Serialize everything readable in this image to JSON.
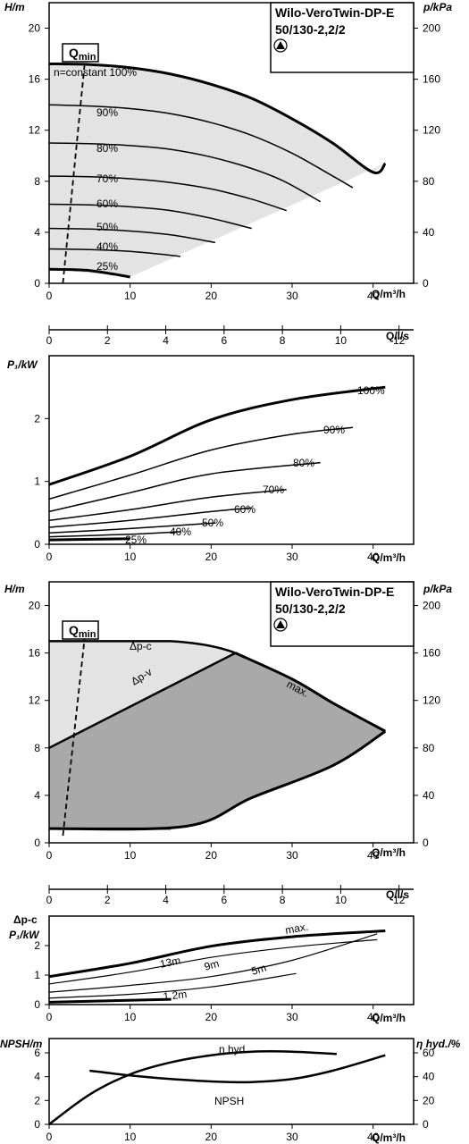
{
  "pump_title": {
    "line1": "Wilo-VeroTwin-DP-E",
    "line2": "50/130-2,2/2"
  },
  "qmin": {
    "q": "Q",
    "sub": "min"
  },
  "axes": {
    "h": "H/m",
    "p": "p/kPa",
    "q_m3h": "Q/m³/h",
    "q_ls": "Q/l/s",
    "p1": "P₁/kW",
    "npsh": "NPSH/m",
    "eta": "η hyd./%",
    "dpc": "Δp-c"
  },
  "colors": {
    "envelope_light": "#e3e3e3",
    "envelope_dark": "#a9a9a9",
    "line": "#000000"
  },
  "chart_data": [
    {
      "id": "hq-constant",
      "type": "line",
      "xlabel": "Q/m³/h",
      "ylabel": "H/m",
      "y2label": "p/kPa",
      "xlim": [
        0,
        45
      ],
      "ylim": [
        0,
        22
      ],
      "y2lim": [
        0,
        220
      ],
      "xticks": [
        0,
        10,
        20,
        30,
        40
      ],
      "yticks": [
        0,
        4,
        8,
        12,
        16,
        20
      ],
      "y2ticks": [
        0,
        40,
        80,
        120,
        160,
        200
      ],
      "secondary_x": {
        "label": "Q/l/s",
        "ticks": [
          0,
          2,
          4,
          6,
          8,
          10,
          12
        ]
      },
      "series": [
        {
          "name": "n=constant 100%",
          "bold": true,
          "x": [
            0,
            5,
            10,
            15,
            20,
            25,
            30,
            35,
            40,
            41.5
          ],
          "y": [
            17.2,
            17.15,
            16.9,
            16.4,
            15.6,
            14.5,
            12.9,
            11.0,
            8.7,
            9.4
          ]
        },
        {
          "name": "90%",
          "x": [
            0,
            5,
            10,
            15,
            20,
            25,
            30,
            34.5,
            37.5
          ],
          "y": [
            14.0,
            13.9,
            13.7,
            13.3,
            12.6,
            11.6,
            10.2,
            8.6,
            7.5
          ]
        },
        {
          "name": "80%",
          "x": [
            0,
            5,
            10,
            15,
            20,
            25,
            29,
            33.5
          ],
          "y": [
            11.0,
            10.95,
            10.8,
            10.5,
            9.9,
            9.0,
            8.0,
            6.4
          ]
        },
        {
          "name": "70%",
          "x": [
            0,
            5,
            10,
            15,
            20,
            25,
            29.3
          ],
          "y": [
            8.4,
            8.35,
            8.2,
            7.9,
            7.4,
            6.6,
            5.7
          ]
        },
        {
          "name": "60%",
          "x": [
            0,
            5,
            10,
            15,
            20,
            25
          ],
          "y": [
            6.2,
            6.15,
            6.0,
            5.7,
            5.1,
            4.3
          ]
        },
        {
          "name": "50%",
          "x": [
            0,
            5,
            10,
            15,
            20.5
          ],
          "y": [
            4.3,
            4.25,
            4.1,
            3.8,
            3.2
          ]
        },
        {
          "name": "40%",
          "x": [
            0,
            5,
            10,
            15,
            16.2
          ],
          "y": [
            2.7,
            2.65,
            2.5,
            2.2,
            2.1
          ]
        },
        {
          "name": "25%",
          "bold": true,
          "x": [
            0,
            5,
            10
          ],
          "y": [
            1.1,
            1.0,
            0.5
          ]
        }
      ],
      "qmin_line": {
        "x": [
          1.7,
          4.6
        ],
        "y": [
          0,
          18.6
        ]
      }
    },
    {
      "id": "p1-constant",
      "type": "line",
      "xlabel": "Q/m³/h",
      "ylabel": "P₁/kW",
      "xlim": [
        0,
        45
      ],
      "ylim": [
        0,
        3.0
      ],
      "xticks": [
        0,
        10,
        20,
        30,
        40
      ],
      "yticks": [
        0,
        1,
        2
      ],
      "series": [
        {
          "name": "100%",
          "bold": true,
          "x": [
            0,
            10,
            20,
            30,
            41.5
          ],
          "y": [
            0.95,
            1.4,
            1.98,
            2.3,
            2.5
          ]
        },
        {
          "name": "90%",
          "x": [
            0,
            10,
            20,
            30,
            37.5
          ],
          "y": [
            0.72,
            1.1,
            1.5,
            1.75,
            1.86
          ]
        },
        {
          "name": "80%",
          "x": [
            0,
            10,
            20,
            33.5
          ],
          "y": [
            0.52,
            0.82,
            1.12,
            1.3
          ]
        },
        {
          "name": "70%",
          "x": [
            0,
            10,
            20,
            29.3
          ],
          "y": [
            0.38,
            0.55,
            0.75,
            0.87
          ]
        },
        {
          "name": "60%",
          "x": [
            0,
            10,
            20,
            25
          ],
          "y": [
            0.27,
            0.38,
            0.52,
            0.58
          ]
        },
        {
          "name": "50%",
          "x": [
            0,
            10,
            20.5
          ],
          "y": [
            0.18,
            0.25,
            0.34
          ]
        },
        {
          "name": "40%",
          "x": [
            0,
            10,
            16.2
          ],
          "y": [
            0.12,
            0.16,
            0.2
          ]
        },
        {
          "name": "25%",
          "bold": true,
          "x": [
            0,
            10
          ],
          "y": [
            0.07,
            0.09
          ]
        }
      ]
    },
    {
      "id": "hq-control",
      "type": "area",
      "xlabel": "Q/m³/h",
      "ylabel": "H/m",
      "y2label": "p/kPa",
      "xlim": [
        0,
        45
      ],
      "ylim": [
        0,
        22
      ],
      "y2lim": [
        0,
        220
      ],
      "xticks": [
        0,
        10,
        20,
        30,
        40
      ],
      "yticks": [
        0,
        4,
        8,
        12,
        16,
        20
      ],
      "y2ticks": [
        0,
        40,
        80,
        120,
        160,
        200
      ],
      "secondary_x": {
        "label": "Q/l/s",
        "ticks": [
          0,
          2,
          4,
          6,
          8,
          10,
          12
        ]
      },
      "series": [
        {
          "name": "Δp-c",
          "x": [
            0,
            15,
            23
          ],
          "y": [
            17.0,
            17.0,
            16.0
          ]
        },
        {
          "name": "Δp-v",
          "x": [
            0,
            23
          ],
          "y": [
            8.0,
            16.0
          ]
        },
        {
          "name": "max.",
          "x": [
            23,
            30,
            35,
            41.5,
            35,
            25,
            17,
            0
          ],
          "y": [
            16.0,
            13.8,
            11.8,
            9.4,
            6.5,
            3.8,
            1.4,
            1.2
          ]
        }
      ],
      "qmin_line": {
        "x": [
          1.7,
          4.6
        ],
        "y": [
          0.6,
          18.6
        ]
      }
    },
    {
      "id": "p1-control",
      "type": "line",
      "xlabel": "Q/m³/h",
      "ylabel": "P₁/kW",
      "xlim": [
        0,
        45
      ],
      "ylim": [
        0,
        3.0
      ],
      "xticks": [
        0,
        10,
        20,
        30,
        40
      ],
      "yticks": [
        0,
        1,
        2
      ],
      "series": [
        {
          "name": "max.",
          "bold": true,
          "x": [
            0,
            10,
            20,
            30,
            41.5
          ],
          "y": [
            0.95,
            1.4,
            1.98,
            2.3,
            2.5
          ]
        },
        {
          "name": "13m",
          "x": [
            0,
            10,
            20,
            30,
            40.5
          ],
          "y": [
            0.7,
            1.1,
            1.6,
            1.95,
            2.2
          ]
        },
        {
          "name": "9m",
          "x": [
            0,
            10,
            20,
            30,
            40.5
          ],
          "y": [
            0.42,
            0.65,
            0.95,
            1.5,
            2.4
          ]
        },
        {
          "name": "5m",
          "x": [
            0,
            10,
            20,
            30.5
          ],
          "y": [
            0.22,
            0.35,
            0.6,
            1.05
          ]
        },
        {
          "name": "1,2m",
          "bold": true,
          "x": [
            0,
            15
          ],
          "y": [
            0.08,
            0.18
          ]
        }
      ]
    },
    {
      "id": "npsh-eta",
      "type": "line",
      "xlabel": "Q/m³/h",
      "ylabel": "NPSH/m",
      "y2label": "η hyd./%",
      "xlim": [
        0,
        45
      ],
      "ylim": [
        0,
        7.2
      ],
      "y2lim": [
        0,
        72
      ],
      "xticks": [
        0,
        10,
        20,
        30,
        40
      ],
      "yticks": [
        0,
        2,
        4,
        6
      ],
      "y2ticks": [
        0,
        20,
        40,
        60
      ],
      "series": [
        {
          "name": "η hyd.",
          "axis": "right",
          "x": [
            0,
            5,
            10,
            15,
            20,
            25,
            30,
            35.5
          ],
          "y": [
            0,
            25,
            42,
            52,
            58,
            61,
            61,
            59
          ]
        },
        {
          "name": "NPSH",
          "axis": "left",
          "x": [
            5,
            10,
            15,
            20,
            25,
            30,
            35,
            41.5
          ],
          "y": [
            4.5,
            4.1,
            3.8,
            3.6,
            3.55,
            3.8,
            4.5,
            5.8
          ]
        }
      ]
    }
  ]
}
